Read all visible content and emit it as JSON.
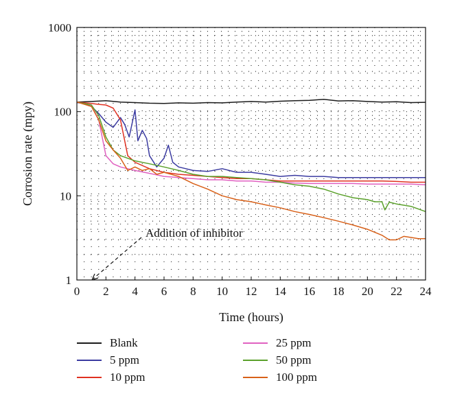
{
  "chart_data": {
    "type": "line",
    "xlabel": "Time (hours)",
    "ylabel": "Corrosion rate (mpy)",
    "xlim": [
      0,
      24
    ],
    "ylim": [
      1,
      1000
    ],
    "yscale": "log",
    "grid": "dotted",
    "legend_position": "bottom",
    "x_ticks": [
      "0",
      "2",
      "4",
      "6",
      "8",
      "10",
      "12",
      "14",
      "16",
      "18",
      "20",
      "22",
      "24"
    ],
    "y_ticks": [
      "1",
      "10",
      "100",
      "1000"
    ],
    "annotation": {
      "text": "Addition of inhibitor",
      "points_to": [
        1,
        1
      ]
    },
    "series": [
      {
        "name": "Blank",
        "color": "#1a1a1a",
        "points": [
          [
            0,
            130
          ],
          [
            1,
            132
          ],
          [
            2,
            135
          ],
          [
            3,
            130
          ],
          [
            4,
            128
          ],
          [
            5,
            126
          ],
          [
            6,
            125
          ],
          [
            7,
            127
          ],
          [
            8,
            126
          ],
          [
            9,
            128
          ],
          [
            10,
            127
          ],
          [
            11,
            130
          ],
          [
            12,
            132
          ],
          [
            13,
            130
          ],
          [
            14,
            133
          ],
          [
            15,
            135
          ],
          [
            16,
            136
          ],
          [
            17,
            140
          ],
          [
            18,
            134
          ],
          [
            19,
            135
          ],
          [
            20,
            132
          ],
          [
            21,
            130
          ],
          [
            22,
            131
          ],
          [
            23,
            128
          ],
          [
            24,
            129
          ]
        ]
      },
      {
        "name": "5 ppm",
        "color": "#3a3aa0",
        "points": [
          [
            0,
            128
          ],
          [
            0.5,
            125
          ],
          [
            1,
            115
          ],
          [
            1.5,
            95
          ],
          [
            2,
            75
          ],
          [
            2.5,
            65
          ],
          [
            3,
            85
          ],
          [
            3.3,
            70
          ],
          [
            3.6,
            50
          ],
          [
            4,
            105
          ],
          [
            4.2,
            45
          ],
          [
            4.5,
            60
          ],
          [
            4.8,
            48
          ],
          [
            5,
            30
          ],
          [
            5.5,
            22
          ],
          [
            6,
            28
          ],
          [
            6.3,
            40
          ],
          [
            6.6,
            25
          ],
          [
            7,
            22
          ],
          [
            7.5,
            21
          ],
          [
            8,
            20
          ],
          [
            9,
            19.5
          ],
          [
            10,
            21
          ],
          [
            11,
            19
          ],
          [
            12,
            19
          ],
          [
            13,
            18
          ],
          [
            14,
            17
          ],
          [
            15,
            17.5
          ],
          [
            16,
            17
          ],
          [
            17,
            17
          ],
          [
            18,
            16.5
          ],
          [
            19,
            16.5
          ],
          [
            20,
            16.5
          ],
          [
            21,
            16.5
          ],
          [
            22,
            16.5
          ],
          [
            23,
            16.5
          ],
          [
            24,
            16.5
          ]
        ]
      },
      {
        "name": "10 ppm",
        "color": "#e03020",
        "points": [
          [
            0,
            130
          ],
          [
            1,
            125
          ],
          [
            1.5,
            122
          ],
          [
            2,
            120
          ],
          [
            2.5,
            110
          ],
          [
            3,
            80
          ],
          [
            3.5,
            30
          ],
          [
            4,
            25
          ],
          [
            5,
            21
          ],
          [
            6,
            19
          ],
          [
            7,
            18
          ],
          [
            8,
            17.5
          ],
          [
            9,
            17
          ],
          [
            10,
            16.5
          ],
          [
            11,
            16
          ],
          [
            12,
            16
          ],
          [
            13,
            15.5
          ],
          [
            14,
            15
          ],
          [
            15,
            15
          ],
          [
            16,
            15
          ],
          [
            17,
            15
          ],
          [
            18,
            15
          ],
          [
            19,
            15
          ],
          [
            20,
            15
          ],
          [
            21,
            15
          ],
          [
            22,
            14.8
          ],
          [
            23,
            14.5
          ],
          [
            24,
            14.5
          ]
        ]
      },
      {
        "name": "25 ppm",
        "color": "#e060c0",
        "points": [
          [
            0,
            130
          ],
          [
            1,
            120
          ],
          [
            1.5,
            80
          ],
          [
            2,
            30
          ],
          [
            2.5,
            24
          ],
          [
            3,
            22
          ],
          [
            4,
            20
          ],
          [
            5,
            18.5
          ],
          [
            6,
            17
          ],
          [
            7,
            16.5
          ],
          [
            8,
            16
          ],
          [
            9,
            15.5
          ],
          [
            10,
            15.5
          ],
          [
            11,
            15
          ],
          [
            12,
            15
          ],
          [
            13,
            14.5
          ],
          [
            14,
            14.5
          ],
          [
            15,
            14.2
          ],
          [
            16,
            14
          ],
          [
            17,
            14
          ],
          [
            18,
            14
          ],
          [
            19,
            14
          ],
          [
            20,
            13.8
          ],
          [
            21,
            13.8
          ],
          [
            22,
            13.8
          ],
          [
            23,
            13.8
          ],
          [
            24,
            13.5
          ]
        ]
      },
      {
        "name": "50 ppm",
        "color": "#5aa02a",
        "points": [
          [
            0,
            130
          ],
          [
            1,
            120
          ],
          [
            1.5,
            90
          ],
          [
            2,
            50
          ],
          [
            2.5,
            35
          ],
          [
            3,
            30
          ],
          [
            4,
            26
          ],
          [
            5,
            24
          ],
          [
            6,
            22
          ],
          [
            7,
            20
          ],
          [
            8,
            18
          ],
          [
            9,
            17
          ],
          [
            10,
            17
          ],
          [
            11,
            16.5
          ],
          [
            12,
            16
          ],
          [
            13,
            15.5
          ],
          [
            14,
            14.5
          ],
          [
            15,
            13.5
          ],
          [
            16,
            13
          ],
          [
            17,
            12
          ],
          [
            18,
            10.5
          ],
          [
            19,
            9.5
          ],
          [
            20,
            9
          ],
          [
            20.5,
            8.5
          ],
          [
            21,
            8.5
          ],
          [
            21.2,
            6.8
          ],
          [
            21.5,
            8.4
          ],
          [
            22,
            8
          ],
          [
            23,
            7.5
          ],
          [
            24,
            6.5
          ]
        ]
      },
      {
        "name": "100 ppm",
        "color": "#d86018",
        "points": [
          [
            0,
            130
          ],
          [
            1,
            115
          ],
          [
            1.5,
            80
          ],
          [
            2,
            45
          ],
          [
            2.5,
            35
          ],
          [
            3,
            28
          ],
          [
            3.5,
            20
          ],
          [
            4,
            22
          ],
          [
            4.5,
            20
          ],
          [
            5,
            21
          ],
          [
            5.5,
            18
          ],
          [
            6,
            19
          ],
          [
            7,
            17
          ],
          [
            8,
            14
          ],
          [
            9,
            12
          ],
          [
            10,
            10
          ],
          [
            11,
            9
          ],
          [
            12,
            8.5
          ],
          [
            13,
            7.8
          ],
          [
            14,
            7.2
          ],
          [
            15,
            6.5
          ],
          [
            16,
            6
          ],
          [
            17,
            5.5
          ],
          [
            18,
            5
          ],
          [
            19,
            4.5
          ],
          [
            20,
            4
          ],
          [
            21,
            3.4
          ],
          [
            21.5,
            3
          ],
          [
            22,
            3
          ],
          [
            22.5,
            3.3
          ],
          [
            23,
            3.2
          ],
          [
            23.5,
            3.1
          ],
          [
            24,
            3.1
          ]
        ]
      }
    ]
  }
}
